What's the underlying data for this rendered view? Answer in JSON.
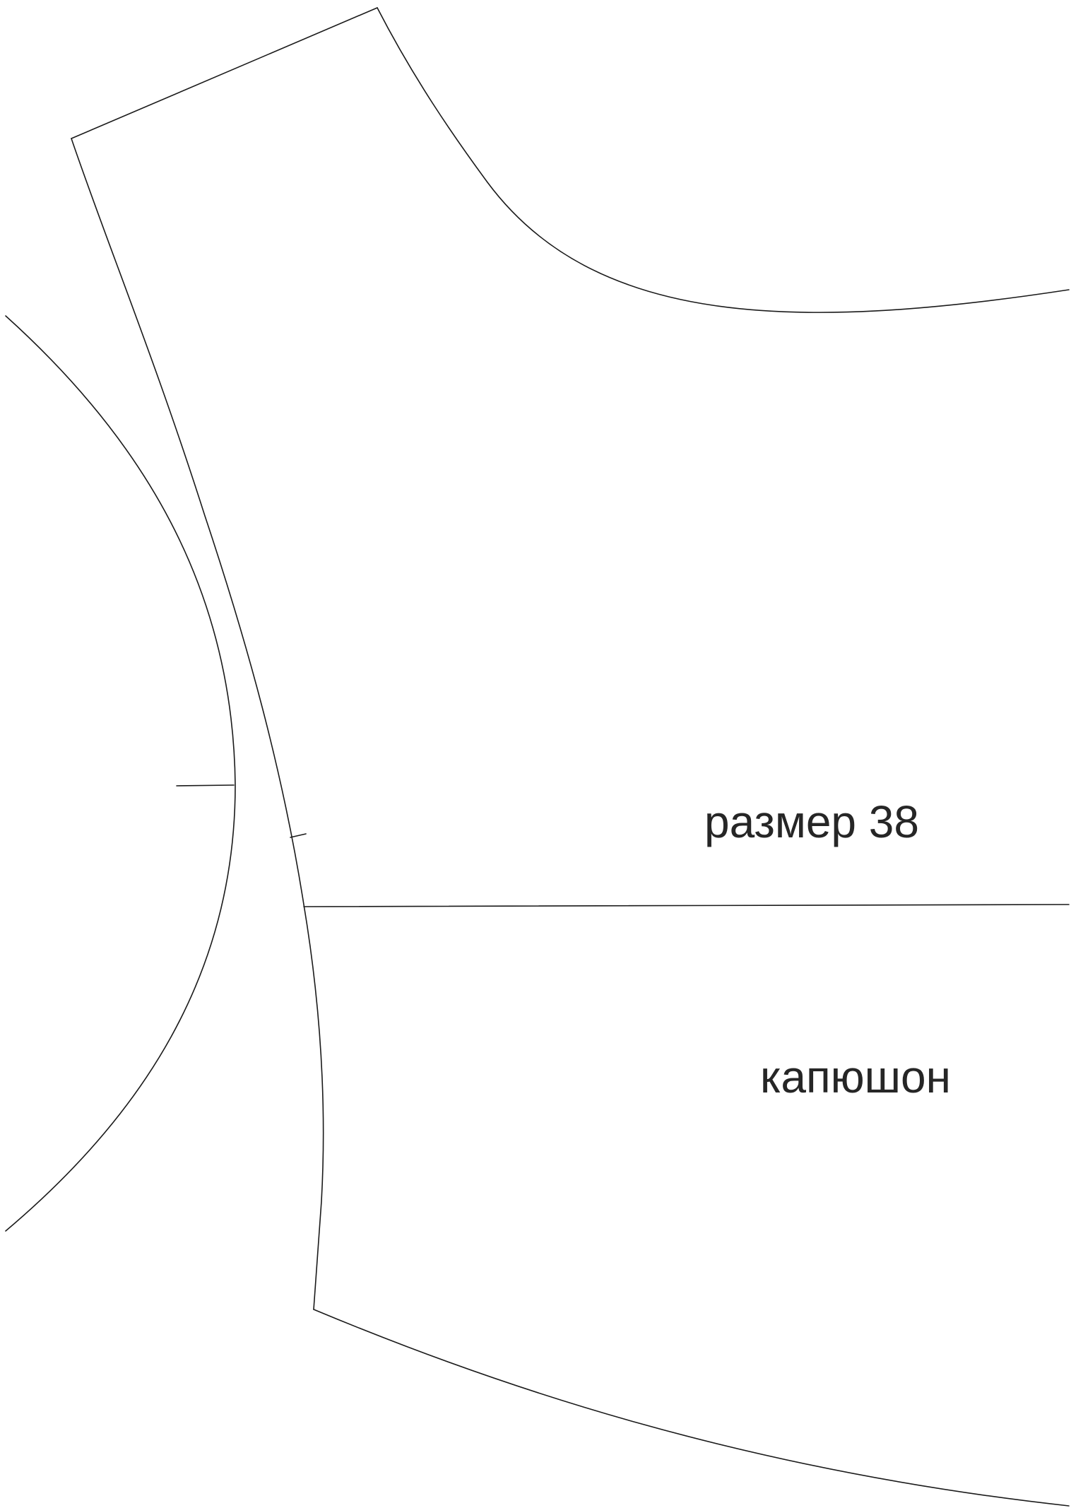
{
  "pattern": {
    "size_label": "размер 38",
    "piece_label": "капюшон"
  },
  "colors": {
    "line": "#1a1a1a",
    "text": "#262626",
    "background": "#ffffff"
  }
}
